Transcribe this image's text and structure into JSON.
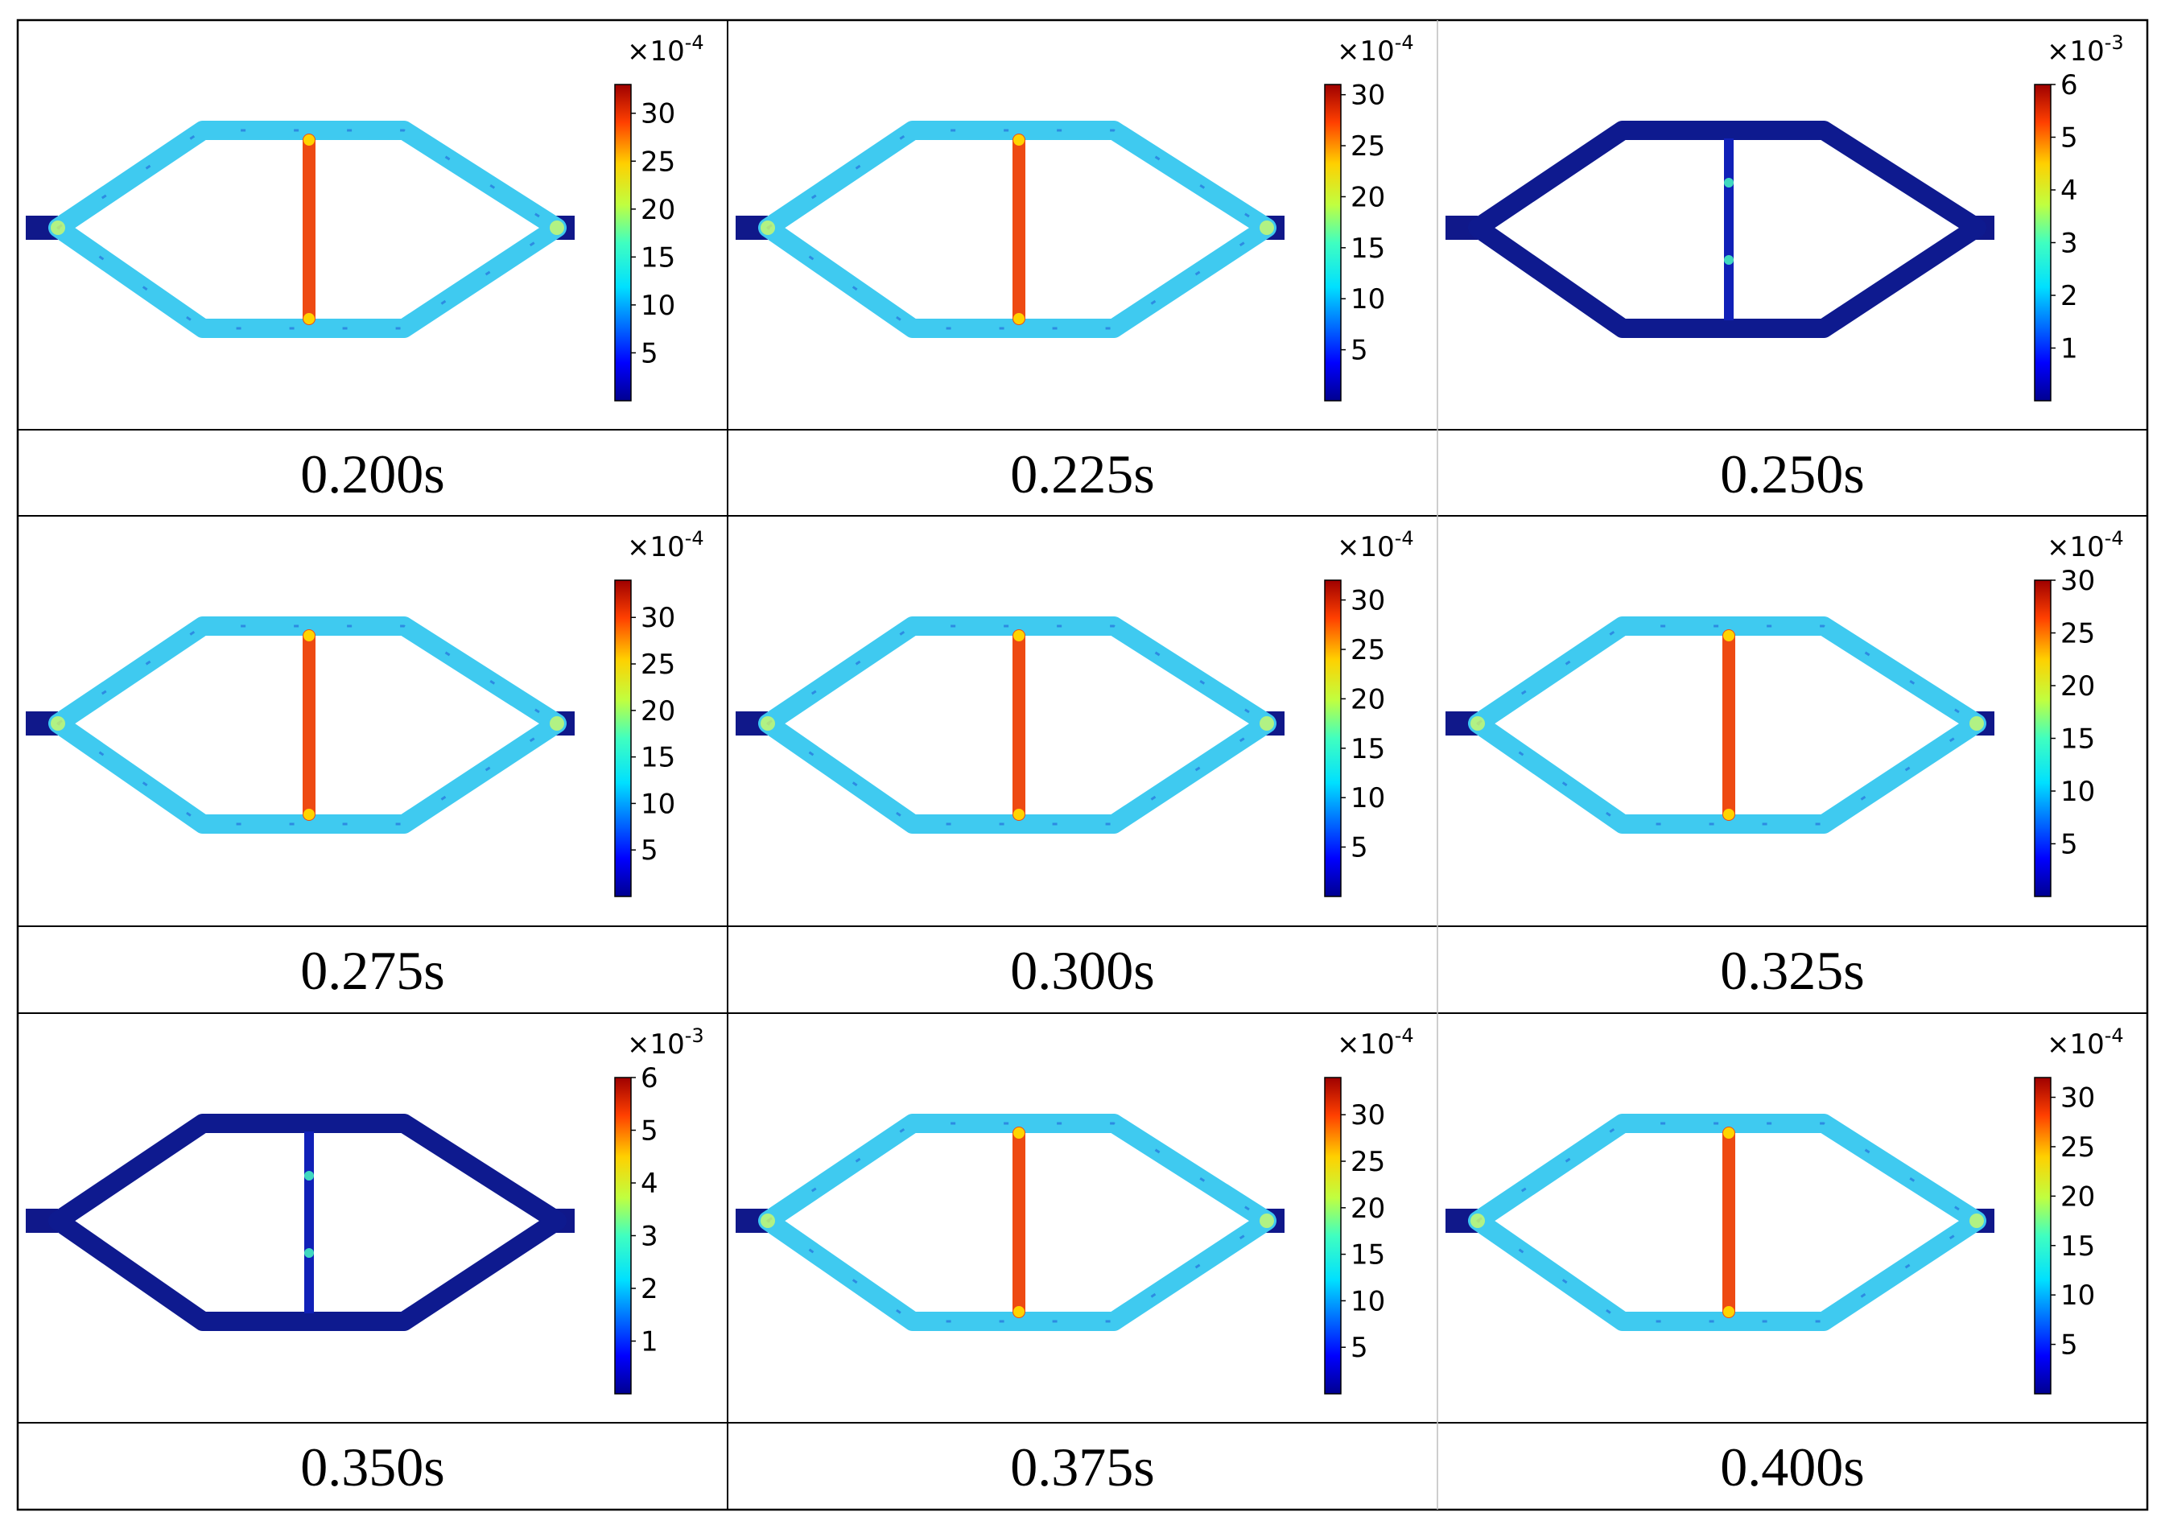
{
  "figure": {
    "panels": [
      {
        "time": "0.200s",
        "scale": "×10",
        "exponent": "-4",
        "ticks": [
          "5",
          "10",
          "15",
          "20",
          "25",
          "30"
        ],
        "max": 33,
        "state": "stressed"
      },
      {
        "time": "0.225s",
        "scale": "×10",
        "exponent": "-4",
        "ticks": [
          "5",
          "10",
          "15",
          "20",
          "25",
          "30"
        ],
        "max": 31,
        "state": "stressed"
      },
      {
        "time": "0.250s",
        "scale": "×10",
        "exponent": "-3",
        "ticks": [
          "1",
          "2",
          "3",
          "4",
          "5",
          "6"
        ],
        "max": 6,
        "state": "relaxed"
      },
      {
        "time": "0.275s",
        "scale": "×10",
        "exponent": "-4",
        "ticks": [
          "5",
          "10",
          "15",
          "20",
          "25",
          "30"
        ],
        "max": 34,
        "state": "stressed"
      },
      {
        "time": "0.300s",
        "scale": "×10",
        "exponent": "-4",
        "ticks": [
          "5",
          "10",
          "15",
          "20",
          "25",
          "30"
        ],
        "max": 32,
        "state": "stressed"
      },
      {
        "time": "0.325s",
        "scale": "×10",
        "exponent": "-4",
        "ticks": [
          "5",
          "10",
          "15",
          "20",
          "25",
          "30"
        ],
        "max": 30,
        "state": "stressed"
      },
      {
        "time": "0.350s",
        "scale": "×10",
        "exponent": "-3",
        "ticks": [
          "1",
          "2",
          "3",
          "4",
          "5",
          "6"
        ],
        "max": 6,
        "state": "relaxed"
      },
      {
        "time": "0.375s",
        "scale": "×10",
        "exponent": "-4",
        "ticks": [
          "5",
          "10",
          "15",
          "20",
          "25",
          "30"
        ],
        "max": 34,
        "state": "stressed"
      },
      {
        "time": "0.400s",
        "scale": "×10",
        "exponent": "-4",
        "ticks": [
          "5",
          "10",
          "15",
          "20",
          "25",
          "30"
        ],
        "max": 32,
        "state": "stressed"
      }
    ],
    "colors": {
      "frame": "#6e6e6e",
      "frame_relaxed": "#0e1a8f",
      "crossbar": "#ee4a12",
      "colormap": [
        "#00008f",
        "#0000ff",
        "#0080ff",
        "#00e5ff",
        "#7fff80",
        "#ffff00",
        "#ff8000",
        "#ff0000",
        "#7f0000"
      ]
    }
  }
}
